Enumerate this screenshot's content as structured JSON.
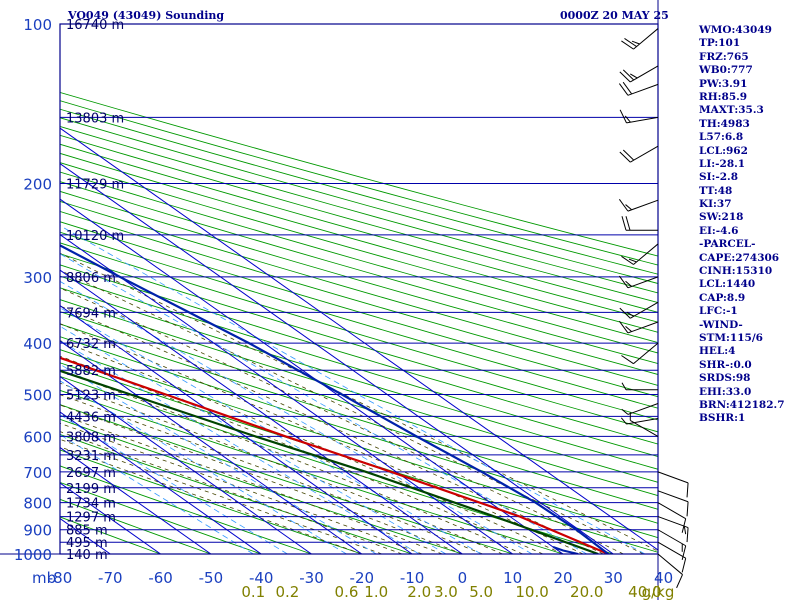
{
  "header": {
    "station": "VO049 (43049) Sounding",
    "time": "0000Z 20 MAY 25"
  },
  "indices": [
    "WMO:43049",
    "TP:101",
    "FRZ:765",
    "WB0:777",
    "PW:3.91",
    "RH:85.9",
    "MAXT:35.3",
    "TH:4983",
    "L57:6.8",
    "LCL:962",
    "LI:-28.1",
    "SI:-2.8",
    "TT:48",
    "KI:37",
    "SW:218",
    "EI:-4.6",
    "-PARCEL-",
    "CAPE:274306",
    "CINH:15310",
    "LCL:1440",
    "CAP:8.9",
    "LFC:-1",
    "-WIND-",
    "STM:115/6",
    "HEL:4",
    "SHR-:0.0",
    "SRDS:98",
    "EHI:33.0",
    "BRN:412182.7",
    "BSHR:1"
  ],
  "colors": {
    "frame": "#00008b",
    "isobar": "#0000aa",
    "isotherm": "#0000cc",
    "dry_adiabat": "#009900",
    "moist_adiabat": "#444400",
    "mixing_ratio": "#3399ff",
    "temperature": "#cc0000",
    "dewpoint": "#004400",
    "parcel": "#0022aa",
    "wind": "#000000",
    "pressure_label": "#1a3fbf",
    "height_label": "#000066",
    "mixing_label": "#808000"
  },
  "chart_data": {
    "type": "line",
    "title": "VO049 (43049) Sounding",
    "subtitle": "0000Z 20 MAY 25",
    "xlabel_left": "mb",
    "xlabel_right": "g/kg",
    "x_ticks": [
      -80,
      -70,
      -60,
      -50,
      -40,
      -30,
      -20,
      -10,
      0,
      10,
      20,
      30,
      40
    ],
    "x_tick_labels": [
      "-80",
      "-70",
      "-60",
      "-50",
      "-40",
      "-30",
      "-20",
      "-10",
      "0",
      "10",
      "20",
      "30",
      "40"
    ],
    "y_scale": "log",
    "pressure_levels": [
      100,
      200,
      300,
      400,
      500,
      600,
      700,
      800,
      900,
      1000
    ],
    "height_levels": [
      {
        "p": 100,
        "label": "16740 m"
      },
      {
        "p": 150,
        "label": "13803 m"
      },
      {
        "p": 200,
        "label": "11729 m"
      },
      {
        "p": 250,
        "label": "10120 m"
      },
      {
        "p": 300,
        "label": "8806 m"
      },
      {
        "p": 350,
        "label": "7694 m"
      },
      {
        "p": 400,
        "label": "6732 m"
      },
      {
        "p": 450,
        "label": "5882 m"
      },
      {
        "p": 500,
        "label": "5123 m"
      },
      {
        "p": 550,
        "label": "4436 m"
      },
      {
        "p": 600,
        "label": "3808 m"
      },
      {
        "p": 650,
        "label": "3231 m"
      },
      {
        "p": 700,
        "label": "2697 m"
      },
      {
        "p": 750,
        "label": "2199 m"
      },
      {
        "p": 800,
        "label": "1734 m"
      },
      {
        "p": 850,
        "label": "1297 m"
      },
      {
        "p": 900,
        "label": "885 m"
      },
      {
        "p": 950,
        "label": "495 m"
      },
      {
        "p": 1000,
        "label": "140 m"
      }
    ],
    "mixing_ratio_labels": [
      {
        "w": 0.1,
        "label": "0.1"
      },
      {
        "w": 0.2,
        "label": "0.2"
      },
      {
        "w": 0.6,
        "label": "0.6"
      },
      {
        "w": 1.0,
        "label": "1.0"
      },
      {
        "w": 2.0,
        "label": "2.0"
      },
      {
        "w": 3.0,
        "label": "3.0"
      },
      {
        "w": 5.0,
        "label": "5.0"
      },
      {
        "w": 10.0,
        "label": "10.0"
      },
      {
        "w": 20.0,
        "label": "20.0"
      },
      {
        "w": 40.0,
        "label": "40.0"
      }
    ],
    "series": [
      {
        "kind": "temperature",
        "points": [
          [
            1000,
            29
          ],
          [
            850,
            22
          ],
          [
            700,
            9
          ],
          [
            600,
            -2
          ],
          [
            500,
            -14
          ],
          [
            400,
            -29
          ],
          [
            300,
            -47
          ],
          [
            200,
            -66
          ],
          [
            113,
            -85
          ]
        ]
      },
      {
        "kind": "dewpoint",
        "points": [
          [
            1000,
            27
          ],
          [
            850,
            17
          ],
          [
            700,
            4
          ],
          [
            600,
            -8
          ],
          [
            500,
            -21
          ],
          [
            400,
            -37
          ],
          [
            300,
            -56
          ],
          [
            185,
            -80
          ]
        ]
      },
      {
        "kind": "parcel",
        "points": [
          [
            1000,
            29
          ],
          [
            900,
            29.5
          ],
          [
            800,
            29
          ],
          [
            700,
            27
          ],
          [
            600,
            24
          ],
          [
            500,
            21
          ],
          [
            400,
            17
          ],
          [
            300,
            10
          ],
          [
            200,
            1
          ],
          [
            150,
            -6
          ],
          [
            125,
            -13
          ]
        ]
      },
      {
        "kind": "dewpoint-near-surface",
        "points": [
          [
            1000,
            23
          ],
          [
            985,
            21
          ],
          [
            970,
            20
          ]
        ]
      }
    ],
    "wind_barbs": [
      {
        "p": 102,
        "dir": 230,
        "kt": 25
      },
      {
        "p": 120,
        "dir": 240,
        "kt": 25
      },
      {
        "p": 130,
        "dir": 250,
        "kt": 20
      },
      {
        "p": 150,
        "dir": 260,
        "kt": 15
      },
      {
        "p": 170,
        "dir": 240,
        "kt": 20
      },
      {
        "p": 215,
        "dir": 250,
        "kt": 15
      },
      {
        "p": 245,
        "dir": 270,
        "kt": 20
      },
      {
        "p": 260,
        "dir": 230,
        "kt": 15
      },
      {
        "p": 300,
        "dir": 250,
        "kt": 15
      },
      {
        "p": 335,
        "dir": 240,
        "kt": 15
      },
      {
        "p": 365,
        "dir": 250,
        "kt": 15
      },
      {
        "p": 400,
        "dir": 230,
        "kt": 10
      },
      {
        "p": 490,
        "dir": 270,
        "kt": 5
      },
      {
        "p": 520,
        "dir": 250,
        "kt": 5
      },
      {
        "p": 555,
        "dir": 260,
        "kt": 5
      },
      {
        "p": 600,
        "dir": 300,
        "kt": 5
      },
      {
        "p": 700,
        "dir": 110,
        "kt": 10
      },
      {
        "p": 760,
        "dir": 110,
        "kt": 10
      },
      {
        "p": 800,
        "dir": 120,
        "kt": 10
      },
      {
        "p": 850,
        "dir": 110,
        "kt": 15
      },
      {
        "p": 900,
        "dir": 120,
        "kt": 15
      },
      {
        "p": 950,
        "dir": 120,
        "kt": 10
      },
      {
        "p": 1000,
        "dir": 130,
        "kt": 10
      }
    ]
  }
}
